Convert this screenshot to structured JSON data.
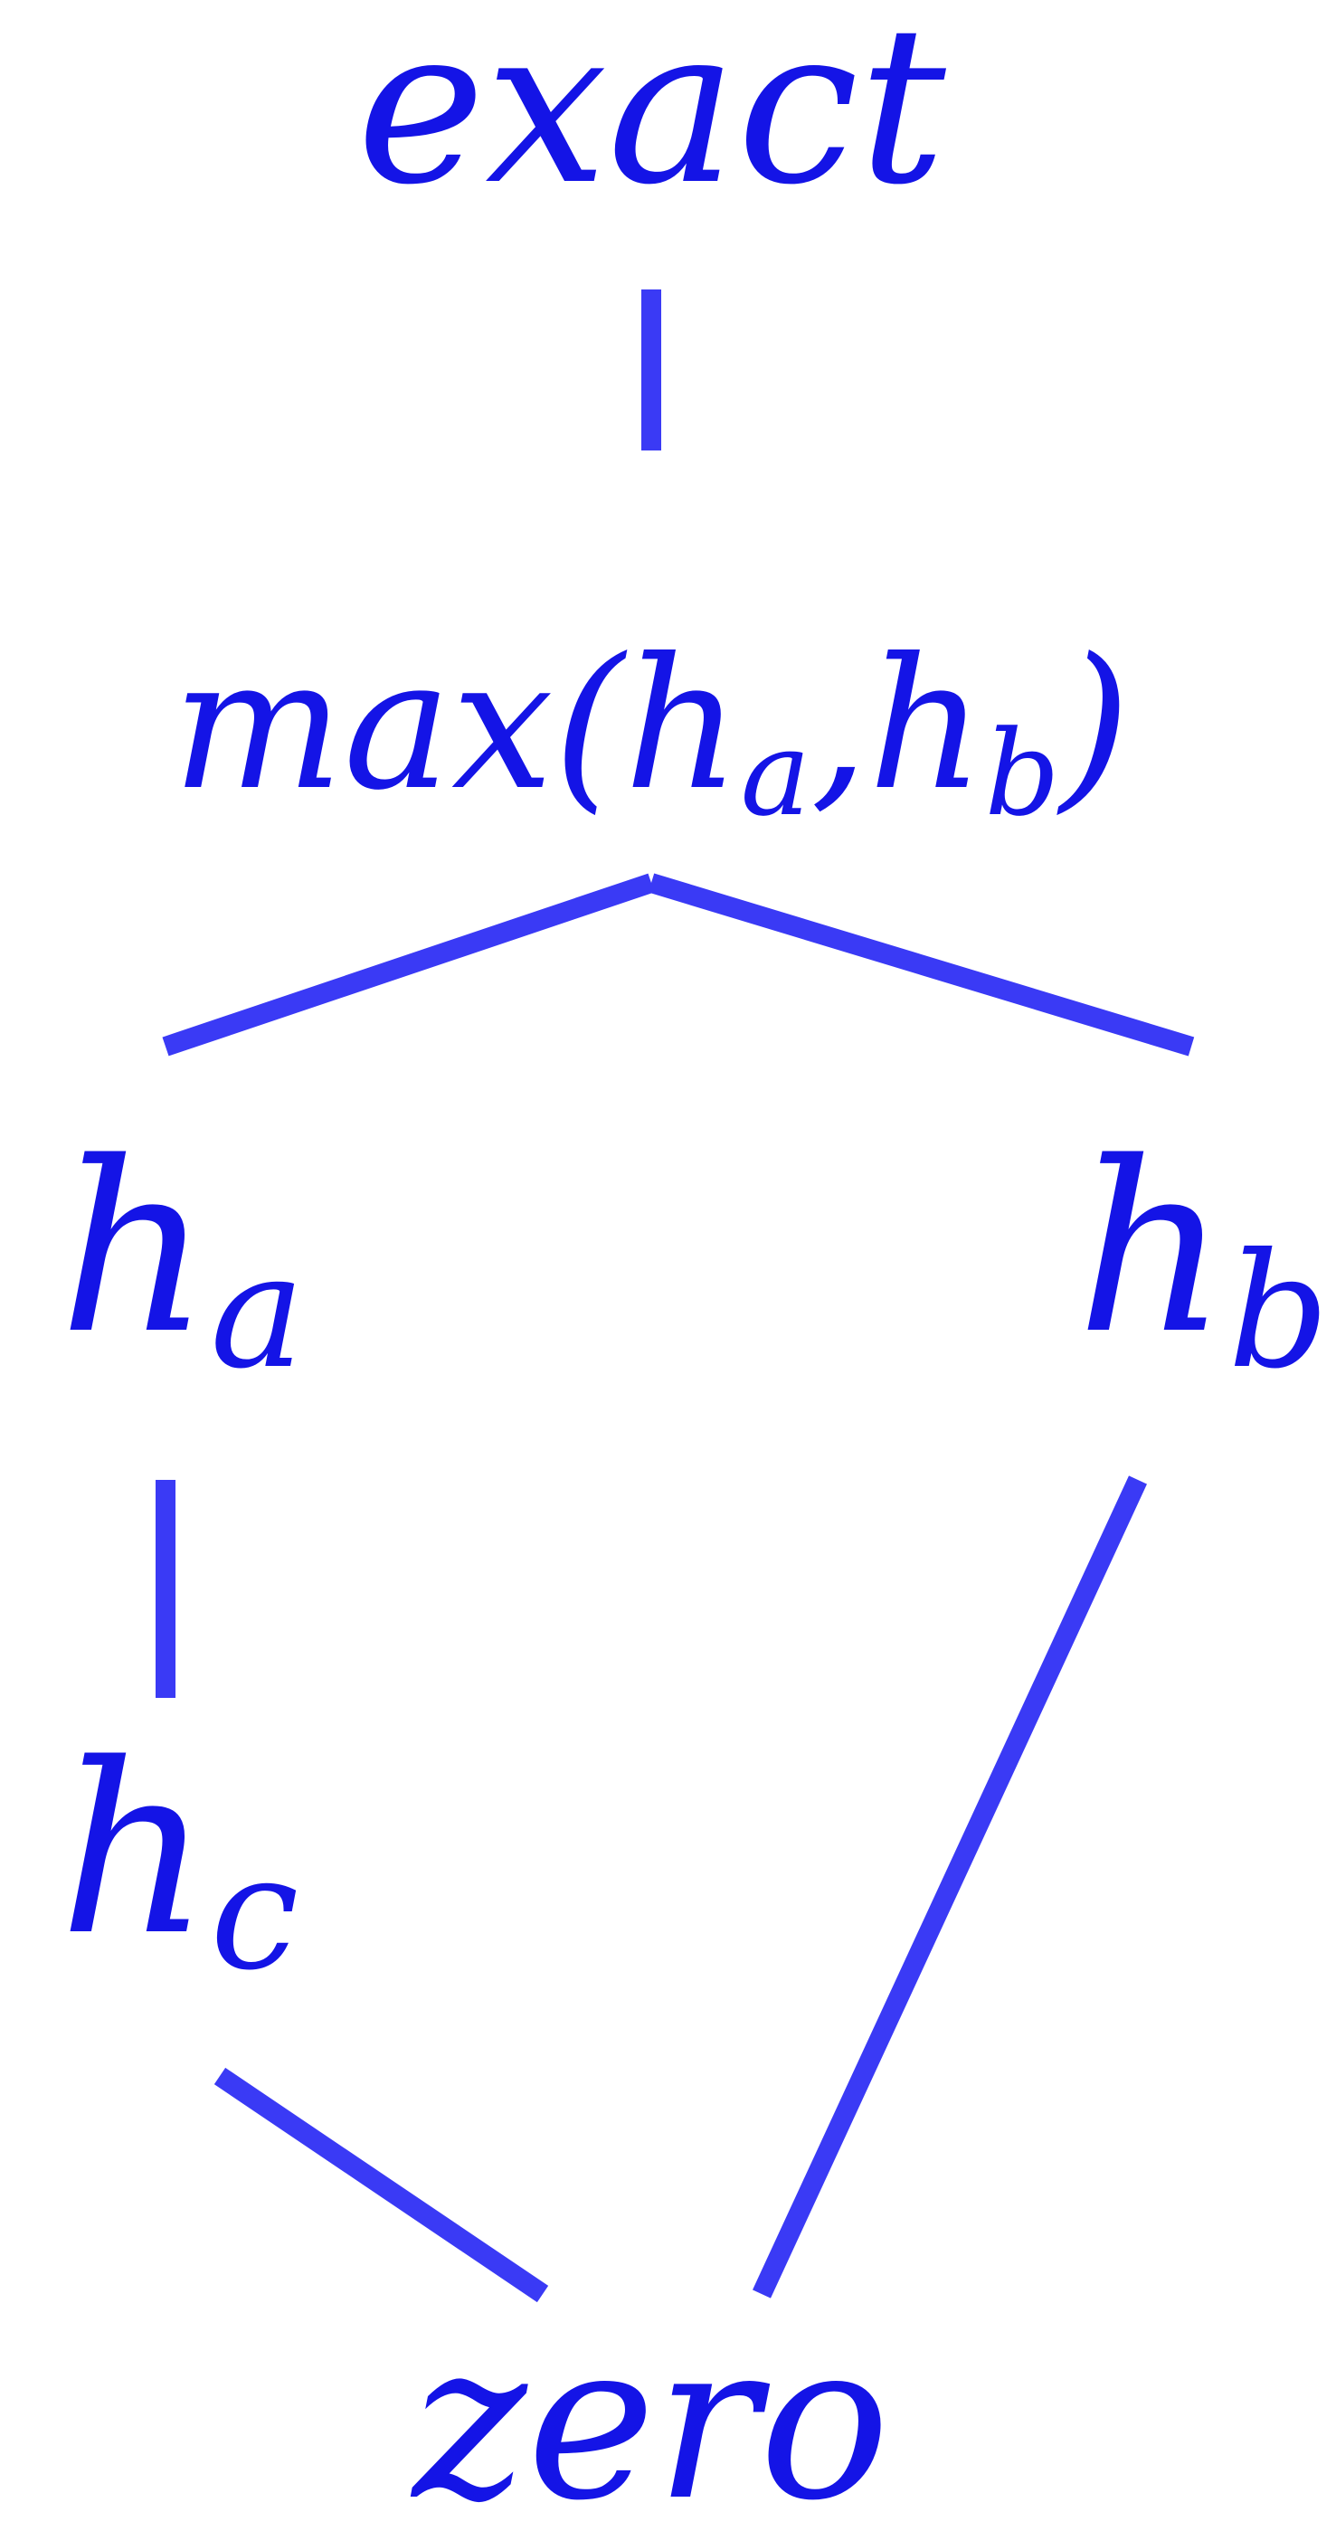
{
  "diagram": {
    "colors": {
      "label": "#1414e6",
      "edge": "#3a3af5",
      "background": "#ffffff"
    },
    "nodes": {
      "exact": {
        "text": "exact"
      },
      "max": {
        "prefix": "max(",
        "h1": "h",
        "sub1": "a",
        "comma": ",",
        "h2": "h",
        "sub2": "b",
        "suffix": ")"
      },
      "ha": {
        "base": "h",
        "sub": "a"
      },
      "hb": {
        "base": "h",
        "sub": "b"
      },
      "hc": {
        "base": "h",
        "sub": "c"
      },
      "zero": {
        "text": "zero"
      }
    },
    "edges": [
      {
        "from": "exact",
        "to": "max"
      },
      {
        "from": "max",
        "to": "ha"
      },
      {
        "from": "max",
        "to": "hb"
      },
      {
        "from": "ha",
        "to": "hc"
      },
      {
        "from": "hc",
        "to": "zero"
      },
      {
        "from": "hb",
        "to": "zero"
      }
    ]
  }
}
